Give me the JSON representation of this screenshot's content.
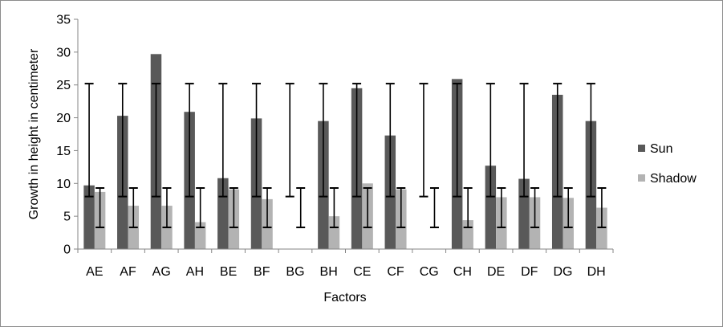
{
  "chart_data": {
    "type": "bar",
    "xlabel": "Factors",
    "ylabel": "Growth in height in centimeter",
    "ylim": [
      0,
      35
    ],
    "yticks": [
      0,
      5,
      10,
      15,
      20,
      25,
      30,
      35
    ],
    "grid": false,
    "legend_position": "right",
    "categories": [
      "AE",
      "AF",
      "AG",
      "AH",
      "BE",
      "BF",
      "BG",
      "BH",
      "CE",
      "CF",
      "CG",
      "CH",
      "DE",
      "DF",
      "DG",
      "DH"
    ],
    "series": [
      {
        "name": "Sun",
        "color": "#595959",
        "values": [
          9.7,
          20.3,
          29.7,
          20.9,
          10.8,
          19.9,
          0,
          19.5,
          24.5,
          17.3,
          0,
          25.9,
          12.7,
          10.7,
          23.5,
          19.5
        ],
        "error_low": [
          8.0,
          8.0,
          8.0,
          8.0,
          8.0,
          8.0,
          8.0,
          8.0,
          8.0,
          8.0,
          8.0,
          8.0,
          8.0,
          8.0,
          8.0,
          8.0
        ],
        "error_high": [
          25.2,
          25.2,
          25.2,
          25.2,
          25.2,
          25.2,
          25.2,
          25.2,
          25.2,
          25.2,
          25.2,
          25.2,
          25.2,
          25.2,
          25.2,
          25.2
        ]
      },
      {
        "name": "Shadow",
        "color": "#b3b3b3",
        "values": [
          8.7,
          6.6,
          6.6,
          4.1,
          9.1,
          7.6,
          0,
          5.0,
          10.0,
          9.1,
          0,
          4.4,
          7.9,
          7.9,
          7.8,
          6.3
        ],
        "error_low": [
          3.3,
          3.3,
          3.3,
          3.3,
          3.3,
          3.3,
          3.3,
          3.3,
          3.3,
          3.3,
          3.3,
          3.3,
          3.3,
          3.3,
          3.3,
          3.3
        ],
        "error_high": [
          9.3,
          9.3,
          9.3,
          9.3,
          9.3,
          9.3,
          9.3,
          9.3,
          9.3,
          9.3,
          9.3,
          9.3,
          9.3,
          9.3,
          9.3,
          9.3
        ]
      }
    ]
  }
}
